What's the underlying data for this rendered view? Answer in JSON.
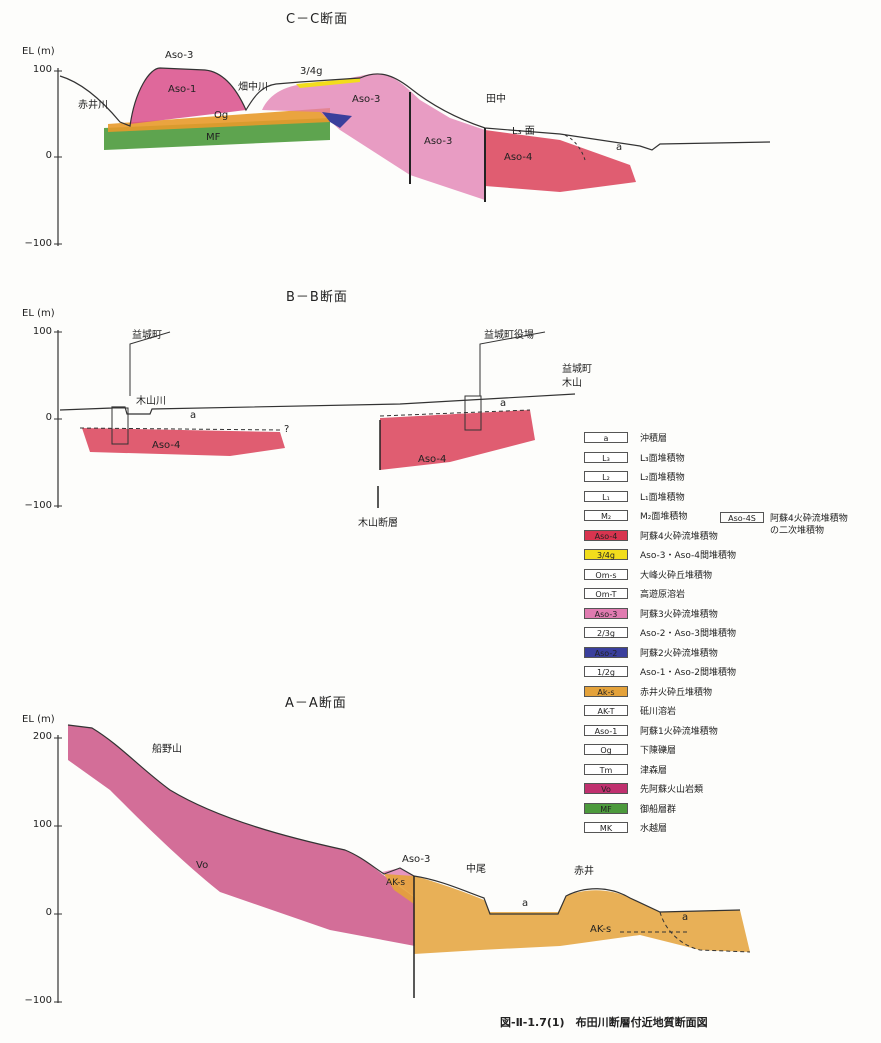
{
  "sections": {
    "cc": {
      "title": "C－C断面",
      "ylabel": "EL (m)",
      "ticks": [
        "100",
        "0",
        "−100"
      ],
      "labels": {
        "aso3_top": "Aso-3",
        "aso1": "Aso-1",
        "akai_river": "赤井川",
        "hatanaka_river": "畑中川",
        "g34": "3/4g",
        "aso3_mid": "Aso-3",
        "tanaka": "田中",
        "l3": "L₃ 面",
        "og": "Og",
        "mf": "MF",
        "aso3_low": "Aso-3",
        "aso4": "Aso-4",
        "a": "a"
      }
    },
    "bb": {
      "title": "B－B断面",
      "ylabel": "EL (m)",
      "ticks": [
        "100",
        "0",
        "−100"
      ],
      "labels": {
        "mashiki": "益城町",
        "mashiki_office": "益城町役場",
        "mashiki_kiyama_1": "益城町",
        "mashiki_kiyama_2": "木山",
        "kiyama_river": "木山川",
        "a1": "a",
        "a2": "a",
        "aso4_left": "Aso-4",
        "aso4_right": "Aso-4",
        "q": "?",
        "fault": "木山断層"
      }
    },
    "aa": {
      "title": "A－A断面",
      "ylabel": "EL (m)",
      "ticks": [
        "200",
        "100",
        "0",
        "−100"
      ],
      "labels": {
        "funano": "船野山",
        "vo": "Vo",
        "aso3": "Aso-3",
        "aks_small": "AK-s",
        "nakao": "中尾",
        "akai": "赤井",
        "a1": "a",
        "a2": "a",
        "aks": "AK-s"
      }
    }
  },
  "legend": [
    {
      "code": "a",
      "text": "沖積層",
      "color": "#ffffff"
    },
    {
      "code": "L₃",
      "text": "L₃面堆積物",
      "color": "#ffffff"
    },
    {
      "code": "L₂",
      "text": "L₂面堆積物",
      "color": "#ffffff"
    },
    {
      "code": "L₁",
      "text": "L₁面堆積物",
      "color": "#ffffff"
    },
    {
      "code": "M₂",
      "text": "M₂面堆積物",
      "color": "#ffffff"
    },
    {
      "code": "Aso-4",
      "text": "阿蘇4火砕流堆積物",
      "color": "#d8344f"
    },
    {
      "code": "3/4g",
      "text": "Aso-3・Aso-4間堆積物",
      "color": "#f2dd1c"
    },
    {
      "code": "Om-s",
      "text": "大峰火砕丘堆積物",
      "color": "#ffffff"
    },
    {
      "code": "Om-T",
      "text": "高遊原溶岩",
      "color": "#ffffff"
    },
    {
      "code": "Aso-3",
      "text": "阿蘇3火砕流堆積物",
      "color": "#e07bb0"
    },
    {
      "code": "2/3g",
      "text": "Aso-2・Aso-3間堆積物",
      "color": "#ffffff"
    },
    {
      "code": "Aso-2",
      "text": "阿蘇2火砕流堆積物",
      "color": "#3a3f9c"
    },
    {
      "code": "1/2g",
      "text": "Aso-1・Aso-2間堆積物",
      "color": "#ffffff"
    },
    {
      "code": "Ak-s",
      "text": "赤井火砕丘堆積物",
      "color": "#e4a23a"
    },
    {
      "code": "AK-T",
      "text": "砥川溶岩",
      "color": "#ffffff"
    },
    {
      "code": "Aso-1",
      "text": "阿蘇1火砕流堆積物",
      "color": "#ffffff"
    },
    {
      "code": "Og",
      "text": "下陳礫層",
      "color": "#ffffff"
    },
    {
      "code": "Tm",
      "text": "津森層",
      "color": "#ffffff"
    },
    {
      "code": "Vo",
      "text": "先阿蘇火山岩類",
      "color": "#c0306e"
    },
    {
      "code": "MF",
      "text": "御船層群",
      "color": "#4c9a3c"
    },
    {
      "code": "MK",
      "text": "水越層",
      "color": "#ffffff"
    }
  ],
  "legend_extra": {
    "code": "Aso-4S",
    "text1": "阿蘇4火砕流堆積物",
    "text2": "の二次堆積物"
  },
  "caption": "図-Ⅱ-1.7(1)　布田川断層付近地質断面図",
  "colors": {
    "aso4": "#d8344f",
    "aso3": "#e07bb0",
    "aso1": "#d94e8a",
    "og": "#e89a2a",
    "mf": "#4c9a3c",
    "g34": "#f2dd1c",
    "aso2": "#3a3f9c",
    "vo": "#c0306e",
    "aks": "#e4a23a"
  }
}
